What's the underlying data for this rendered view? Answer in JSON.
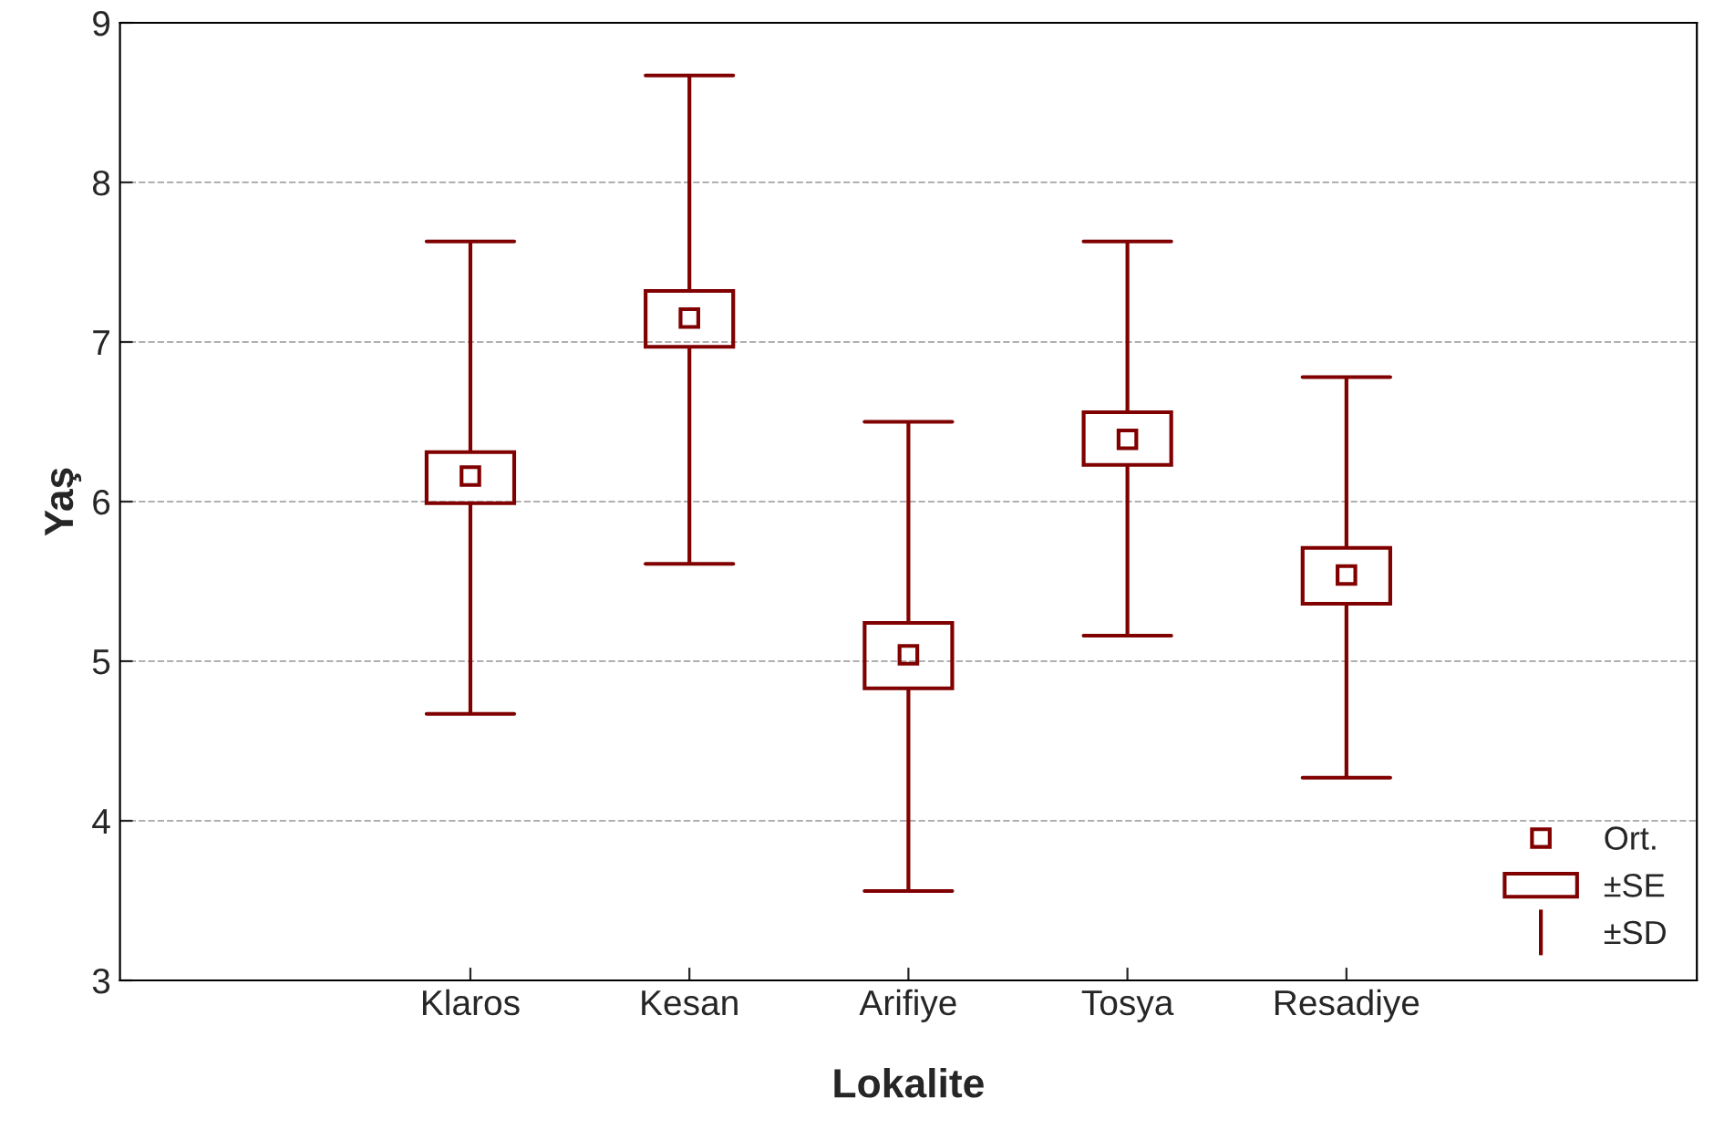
{
  "chart_data": {
    "type": "box",
    "xlabel": "Lokalite",
    "ylabel": "Yaş",
    "categories": [
      "Klaros",
      "Kesan",
      "Arifiye",
      "Tosya",
      "Resadiye"
    ],
    "color": "#800000",
    "boxes": [
      {
        "low": 4.67,
        "q1": 5.99,
        "q3": 6.31,
        "high": 7.63,
        "mean": 6.16
      },
      {
        "low": 5.61,
        "q1": 6.97,
        "q3": 7.32,
        "high": 8.67,
        "mean": 7.15
      },
      {
        "low": 3.56,
        "q1": 4.83,
        "q3": 5.24,
        "high": 6.5,
        "mean": 5.04
      },
      {
        "low": 5.16,
        "q1": 6.23,
        "q3": 6.56,
        "high": 7.63,
        "mean": 6.39
      },
      {
        "low": 4.27,
        "q1": 5.36,
        "q3": 5.71,
        "high": 6.78,
        "mean": 5.54
      }
    ],
    "annotations": [
      "Ort.",
      "±SE",
      "±SD"
    ],
    "ylim": [
      3,
      9
    ],
    "yticks": [
      3,
      4,
      5,
      6,
      7,
      8,
      9
    ],
    "grid": "y"
  }
}
